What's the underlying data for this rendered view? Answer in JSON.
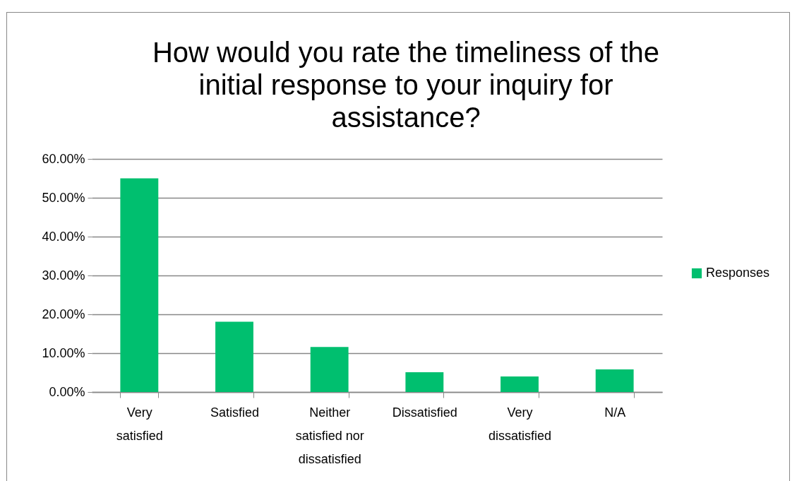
{
  "chart_data": {
    "type": "bar",
    "title": "How would you rate the timeliness of the initial response to your inquiry for assistance?",
    "categories": [
      "Very satisfied",
      "Satisfied",
      "Neither satisfied nor dissatisfied",
      "Dissatisfied",
      "Very dissatisfied",
      "N/A"
    ],
    "series": [
      {
        "name": "Responses",
        "color": "#00bf6f",
        "values": [
          55,
          18.1,
          11.6,
          5.1,
          4.0,
          5.8
        ]
      }
    ],
    "ylim": [
      0,
      60
    ],
    "yticks": [
      {
        "value": 0,
        "label": "0.00%"
      },
      {
        "value": 10,
        "label": "10.00%"
      },
      {
        "value": 20,
        "label": "20.00%"
      },
      {
        "value": 30,
        "label": "30.00%"
      },
      {
        "value": 40,
        "label": "40.00%"
      },
      {
        "value": 50,
        "label": "50.00%"
      },
      {
        "value": 60,
        "label": "60.00%"
      }
    ],
    "grid": "y",
    "legend": "right"
  }
}
